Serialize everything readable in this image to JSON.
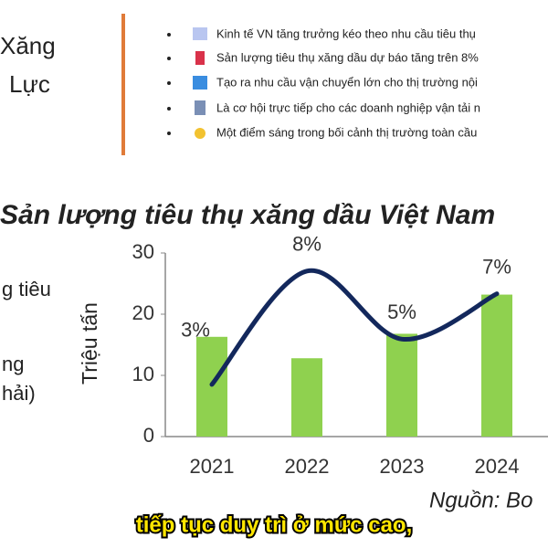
{
  "slide": {
    "heading_fragments": [
      "Xăng",
      "Lực"
    ],
    "bullets": [
      "Kinh tế VN tăng trưởng kéo theo nhu cầu tiêu thụ",
      "Sản lượng tiêu thụ xăng dầu dự báo tăng trên 8%",
      "Tạo ra nhu cầu vận chuyển lớn cho thị trường nội",
      "Là cơ hội trực tiếp cho các doanh nghiệp vận tải n",
      "Một điểm sáng trong bối cảnh thị trường toàn cầu"
    ],
    "left_fragments": [
      "g tiêu",
      "ng",
      "hải)"
    ],
    "caption": "tiếp tục duy trì ở mức cao,"
  },
  "chart_data": {
    "type": "bar",
    "title": "Sản lượng tiêu thụ xăng dầu Việt Nam",
    "ylabel": "Triệu tấn",
    "source": "Nguồn: Bo",
    "categories": [
      "2021",
      "2022",
      "2023",
      "2024"
    ],
    "series": [
      {
        "type": "bar",
        "color": "#8fd14f",
        "values": [
          16.3,
          12.8,
          16.8,
          23.2
        ]
      },
      {
        "type": "line",
        "axis": "y2",
        "color": "#13285c",
        "values": [
          3,
          8,
          5,
          7
        ],
        "value_labels": [
          "3%",
          "8%",
          "5%",
          "7%"
        ]
      }
    ],
    "ylim": [
      0,
      30
    ],
    "yticks": [
      0,
      10,
      20,
      30
    ],
    "y2lim": [
      0.7,
      8.8
    ]
  }
}
